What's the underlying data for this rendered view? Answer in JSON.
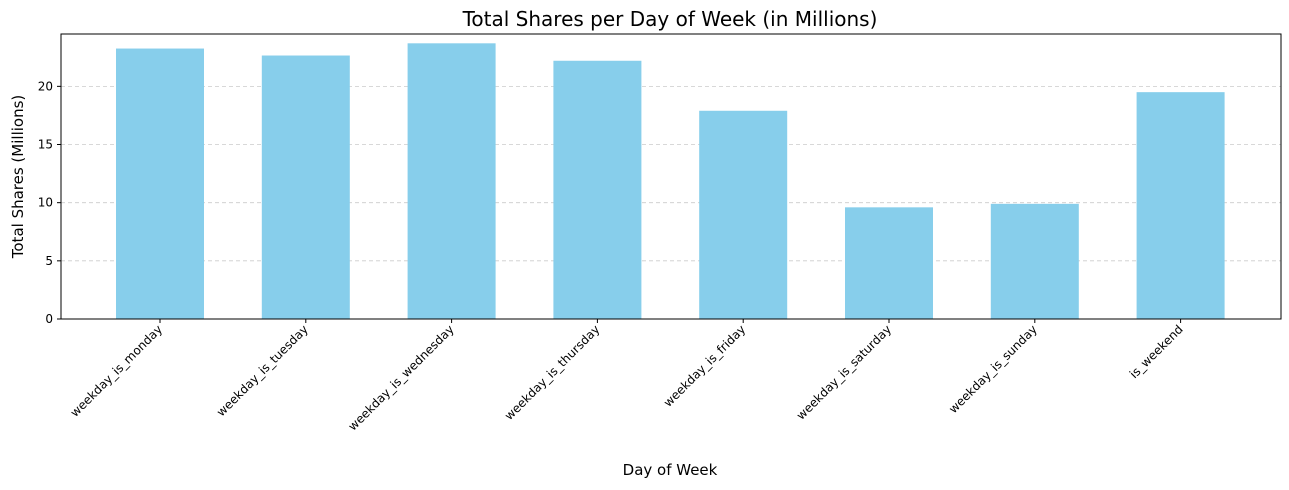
{
  "chart_data": {
    "type": "bar",
    "title": "Total Shares per Day of Week (in Millions)",
    "xlabel": "Day of Week",
    "ylabel": "Total Shares (Millions)",
    "categories": [
      "weekday_is_monday",
      "weekday_is_tuesday",
      "weekday_is_wednesday",
      "weekday_is_thursday",
      "weekday_is_friday",
      "weekday_is_saturday",
      "weekday_is_sunday",
      "is_weekend"
    ],
    "values": [
      23.25,
      22.65,
      23.7,
      22.2,
      17.9,
      9.6,
      9.9,
      19.5
    ],
    "ylim": [
      0,
      24.5
    ],
    "yticks": [
      0,
      5,
      10,
      15,
      20
    ],
    "grid": "y-dashed",
    "bar_color": "#87ceeb",
    "grid_color": "#cccccc"
  }
}
